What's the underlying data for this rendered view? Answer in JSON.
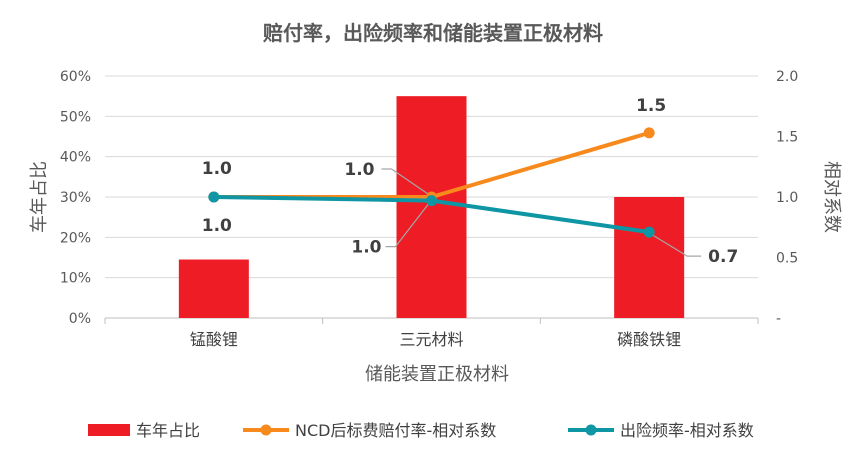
{
  "chart_data": {
    "type": "bar",
    "title": "赔付率，出险频率和储能装置正极材料",
    "xlabel": "储能装置正极材料",
    "ylabel": "车年占比",
    "y2label": "相对系数",
    "categories": [
      "锰酸锂",
      "三元材料",
      "磷酸铁锂"
    ],
    "ylim": [
      0,
      0.6
    ],
    "yticks": [
      "0%",
      "10%",
      "20%",
      "30%",
      "40%",
      "50%",
      "60%"
    ],
    "y2lim": [
      0,
      2.0
    ],
    "y2ticks": [
      "-",
      "0.5",
      "1.0",
      "1.5",
      "2.0"
    ],
    "grid": true,
    "legend_position": "bottom",
    "series": [
      {
        "name": "车年占比",
        "kind": "bar",
        "axis": "left",
        "color": "#EE1C25",
        "values": [
          0.145,
          0.55,
          0.3
        ]
      },
      {
        "name": "NCD后标费赔付率-相对系数",
        "kind": "line",
        "axis": "right",
        "color": "#F7891D",
        "values": [
          1.0,
          1.0,
          1.53
        ]
      },
      {
        "name": "出险频率-相对系数",
        "kind": "line",
        "axis": "right",
        "color": "#0E96A5",
        "values": [
          1.0,
          0.97,
          0.71
        ]
      }
    ],
    "data_labels": {
      "ncd": [
        "1.0",
        "1.0",
        "1.5"
      ],
      "freq": [
        "1.0",
        "1.0",
        "0.7"
      ]
    }
  }
}
